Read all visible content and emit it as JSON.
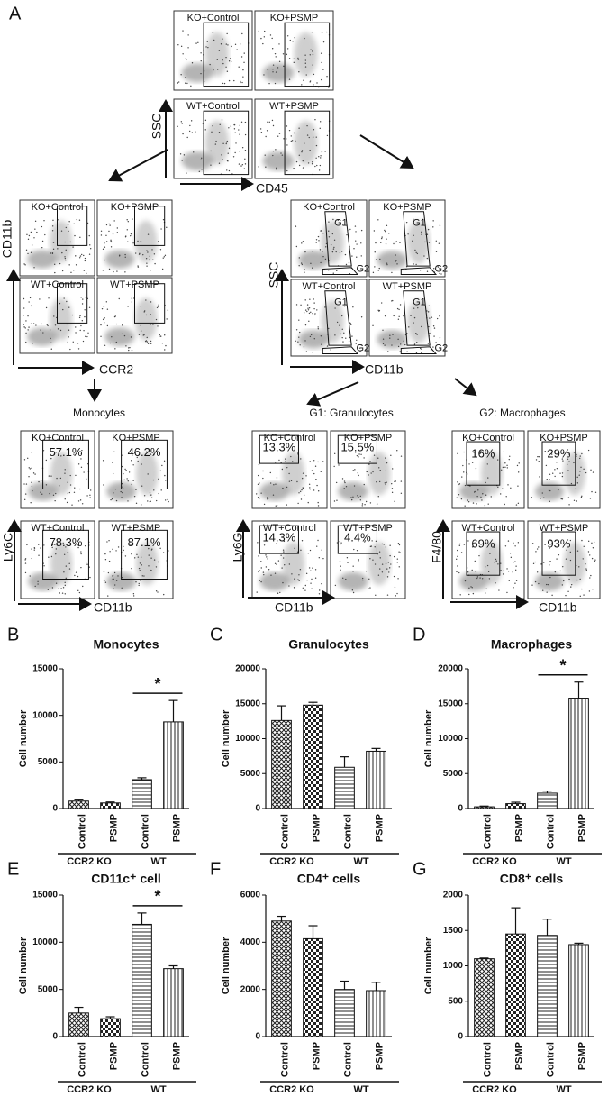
{
  "panel_a": {
    "label": "A",
    "blocks": [
      {
        "x_axis": "CD45",
        "y_axis": "SSC",
        "plots": [
          {
            "label": "KO+Control"
          },
          {
            "label": "KO+PSMP"
          },
          {
            "label": "WT+Control"
          },
          {
            "label": "WT+PSMP"
          }
        ]
      },
      {
        "x_axis": "CCR2",
        "y_axis": "CD11b",
        "plots": [
          {
            "label": "KO+Control"
          },
          {
            "label": "KO+PSMP"
          },
          {
            "label": "WT+Control"
          },
          {
            "label": "WT+PSMP"
          }
        ]
      },
      {
        "x_axis": "CD11b",
        "y_axis": "SSC",
        "gates": [
          "G1",
          "G2"
        ],
        "plots": [
          {
            "label": "KO+Control"
          },
          {
            "label": "KO+PSMP"
          },
          {
            "label": "WT+Control"
          },
          {
            "label": "WT+PSMP"
          }
        ]
      },
      {
        "title": "Monocytes",
        "x_axis": "CD11b",
        "y_axis": "Ly6C",
        "plots": [
          {
            "label": "KO+Control",
            "percent": "57.1%"
          },
          {
            "label": "KO+PSMP",
            "percent": "46.2%"
          },
          {
            "label": "WT+Control",
            "percent": "78.3%"
          },
          {
            "label": "WT+PSMP",
            "percent": "87.1%"
          }
        ]
      },
      {
        "title": "G1: Granulocytes",
        "x_axis": "CD11b",
        "y_axis": "Ly6G",
        "plots": [
          {
            "label": "KO+Control",
            "percent": "13.3%"
          },
          {
            "label": "KO+PSMP",
            "percent": "15.5%"
          },
          {
            "label": "WT+Control",
            "percent": "14.3%"
          },
          {
            "label": "WT+PSMP",
            "percent": "4.4%"
          }
        ]
      },
      {
        "title": "G2: Macrophages",
        "x_axis": "CD11b",
        "y_axis": "F4/80",
        "plots": [
          {
            "label": "KO+Control",
            "percent": "16%"
          },
          {
            "label": "KO+PSMP",
            "percent": "29%"
          },
          {
            "label": "WT+Control",
            "percent": "69%"
          },
          {
            "label": "WT+PSMP",
            "percent": "93%"
          }
        ]
      }
    ]
  },
  "chart_data": [
    {
      "type": "bar",
      "panel": "B",
      "title": "Monocytes",
      "y_label": "Cell number",
      "categories": [
        "Control",
        "PSMP",
        "Control",
        "PSMP"
      ],
      "groups": [
        "CCR2 KO",
        "WT"
      ],
      "values": [
        800,
        600,
        3100,
        9300
      ],
      "errors": [
        200,
        100,
        200,
        2300
      ],
      "patterns": [
        "crosshatch",
        "checker",
        "horizontal",
        "vertical"
      ],
      "ylim": [
        0,
        15000
      ],
      "yticks": [
        0,
        5000,
        10000,
        15000
      ],
      "annotation": "*"
    },
    {
      "type": "bar",
      "panel": "C",
      "title": "Granulocytes",
      "y_label": "Cell number",
      "categories": [
        "Control",
        "PSMP",
        "Control",
        "PSMP"
      ],
      "groups": [
        "CCR2 KO",
        "WT"
      ],
      "values": [
        12600,
        14800,
        5900,
        8200
      ],
      "errors": [
        2100,
        400,
        1500,
        400
      ],
      "patterns": [
        "crosshatch",
        "checker",
        "horizontal",
        "vertical"
      ],
      "ylim": [
        0,
        20000
      ],
      "yticks": [
        0,
        5000,
        10000,
        15000,
        20000
      ]
    },
    {
      "type": "bar",
      "panel": "D",
      "title": "Macrophages",
      "y_label": "Cell number",
      "categories": [
        "Control",
        "PSMP",
        "Control",
        "PSMP"
      ],
      "groups": [
        "CCR2 KO",
        "WT"
      ],
      "values": [
        250,
        700,
        2200,
        15800
      ],
      "errors": [
        100,
        200,
        300,
        2300
      ],
      "patterns": [
        "crosshatch",
        "checker",
        "horizontal",
        "vertical"
      ],
      "ylim": [
        0,
        20000
      ],
      "yticks": [
        0,
        5000,
        10000,
        15000,
        20000
      ],
      "annotation": "*"
    },
    {
      "type": "bar",
      "panel": "E",
      "title": "CD11c⁺ cell",
      "y_label": "Cell number",
      "categories": [
        "Control",
        "PSMP",
        "Control",
        "PSMP"
      ],
      "groups": [
        "CCR2 KO",
        "WT"
      ],
      "values": [
        2500,
        1900,
        11900,
        7200
      ],
      "errors": [
        600,
        200,
        1200,
        300
      ],
      "patterns": [
        "crosshatch",
        "checker",
        "horizontal",
        "vertical"
      ],
      "ylim": [
        0,
        15000
      ],
      "yticks": [
        0,
        5000,
        10000,
        15000
      ],
      "annotation": "*"
    },
    {
      "type": "bar",
      "panel": "F",
      "title": "CD4⁺ cells",
      "y_label": "Cell number",
      "categories": [
        "Control",
        "PSMP",
        "Control",
        "PSMP"
      ],
      "groups": [
        "CCR2 KO",
        "WT"
      ],
      "values": [
        4900,
        4150,
        2000,
        1950
      ],
      "errors": [
        200,
        550,
        350,
        350
      ],
      "patterns": [
        "crosshatch",
        "checker",
        "horizontal",
        "vertical"
      ],
      "ylim": [
        0,
        6000
      ],
      "yticks": [
        0,
        2000,
        4000,
        6000
      ]
    },
    {
      "type": "bar",
      "panel": "G",
      "title": "CD8⁺ cells",
      "y_label": "Cell number",
      "categories": [
        "Control",
        "PSMP",
        "Control",
        "PSMP"
      ],
      "groups": [
        "CCR2 KO",
        "WT"
      ],
      "values": [
        1100,
        1450,
        1430,
        1300
      ],
      "errors": [
        10,
        370,
        230,
        20
      ],
      "patterns": [
        "crosshatch",
        "checker",
        "horizontal",
        "vertical"
      ],
      "ylim": [
        0,
        2000
      ],
      "yticks": [
        0,
        500,
        1000,
        1500,
        2000
      ]
    }
  ]
}
